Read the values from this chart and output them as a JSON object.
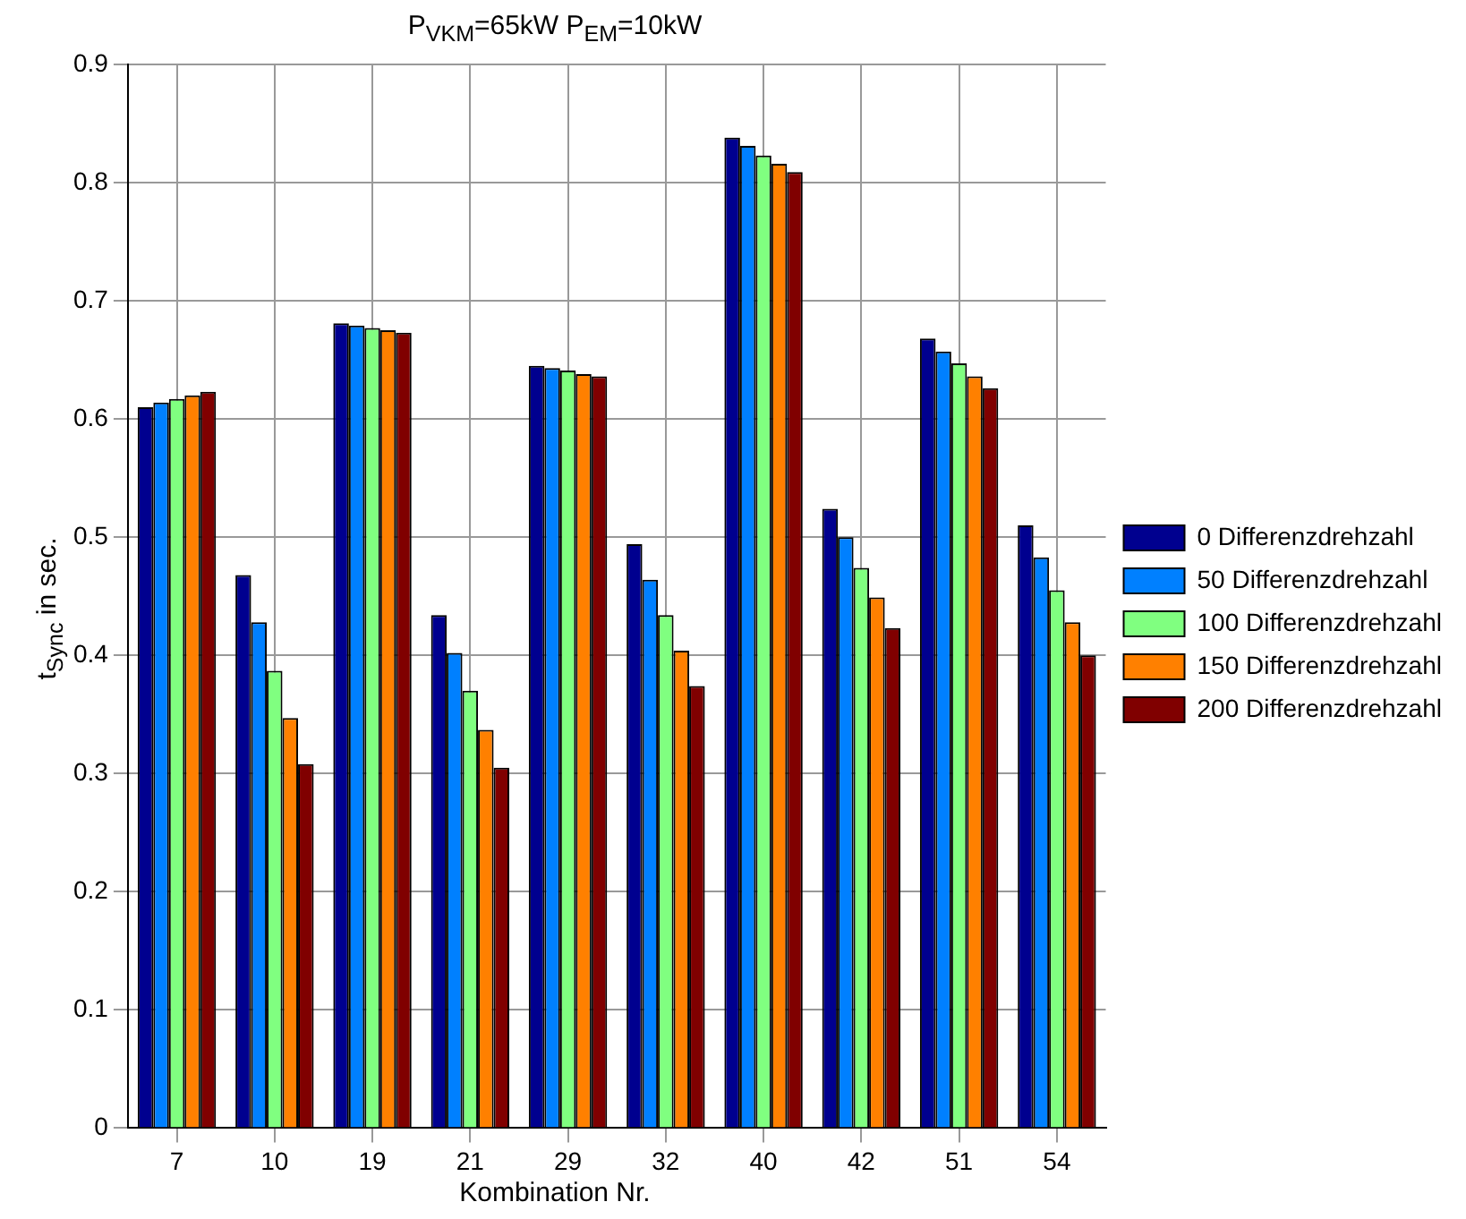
{
  "chart_data": {
    "type": "bar",
    "title": "P$_{VKM}$=65kW  P$_{EM}$=10kW",
    "xlabel": "Kombination Nr.",
    "ylabel": "t$_{Sync}$ in sec.",
    "categories": [
      "7",
      "10",
      "19",
      "21",
      "29",
      "32",
      "40",
      "42",
      "51",
      "54"
    ],
    "series": [
      {
        "name": "0 Differenzdrehzahl",
        "color": "#00008f",
        "values": [
          0.61,
          0.468,
          0.681,
          0.434,
          0.645,
          0.494,
          0.838,
          0.524,
          0.668,
          0.51
        ]
      },
      {
        "name": "50 Differenzdrehzahl",
        "color": "#0080ff",
        "values": [
          0.614,
          0.428,
          0.679,
          0.402,
          0.643,
          0.464,
          0.831,
          0.5,
          0.657,
          0.483
        ]
      },
      {
        "name": "100 Differenzdrehzahl",
        "color": "#80ff80",
        "values": [
          0.617,
          0.387,
          0.677,
          0.37,
          0.641,
          0.434,
          0.823,
          0.474,
          0.647,
          0.455
        ]
      },
      {
        "name": "150 Differenzdrehzahl",
        "color": "#ff8000",
        "values": [
          0.62,
          0.347,
          0.675,
          0.337,
          0.638,
          0.404,
          0.816,
          0.449,
          0.636,
          0.428
        ]
      },
      {
        "name": "200 Differenzdrehzahl",
        "color": "#800000",
        "values": [
          0.623,
          0.308,
          0.673,
          0.305,
          0.636,
          0.374,
          0.809,
          0.423,
          0.626,
          0.4
        ]
      }
    ],
    "ylim": [
      0,
      0.9
    ],
    "yticks": [
      0,
      0.1,
      0.2,
      0.3,
      0.4,
      0.5,
      0.6,
      0.7,
      0.8,
      0.9
    ],
    "grid": true,
    "legend": "right"
  }
}
